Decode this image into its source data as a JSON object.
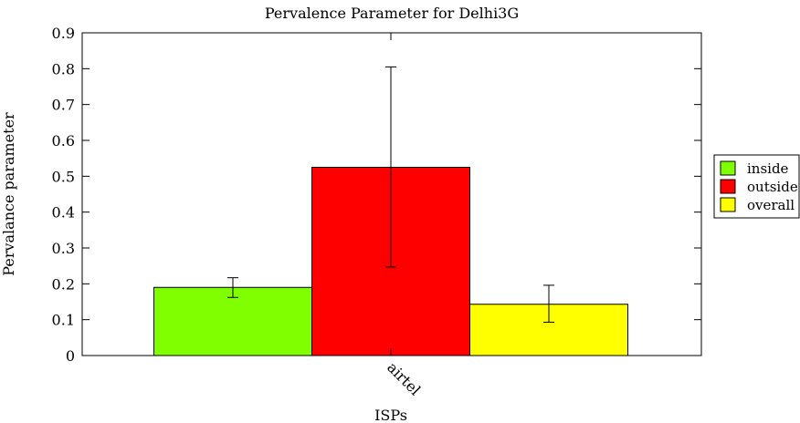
{
  "chart_data": {
    "type": "bar",
    "title": "Pervalence Parameter for Delhi3G",
    "xlabel": "ISPs",
    "ylabel": "Pervalance parameter",
    "ylim": [
      0,
      0.9
    ],
    "yticks": [
      "0",
      "0.1",
      "0.2",
      "0.3",
      "0.4",
      "0.5",
      "0.6",
      "0.7",
      "0.8",
      "0.9"
    ],
    "categories": [
      "airtel"
    ],
    "series": [
      {
        "name": "inside",
        "color": "#80ff00",
        "values": [
          0.19
        ],
        "error_low": [
          0.162
        ],
        "error_high": [
          0.217
        ]
      },
      {
        "name": "outside",
        "color": "#ff0000",
        "values": [
          0.525
        ],
        "error_low": [
          0.247
        ],
        "error_high": [
          0.805
        ]
      },
      {
        "name": "overall",
        "color": "#ffff00",
        "values": [
          0.143
        ],
        "error_low": [
          0.093
        ],
        "error_high": [
          0.196
        ]
      }
    ],
    "legend_position": "right",
    "grid": false
  }
}
